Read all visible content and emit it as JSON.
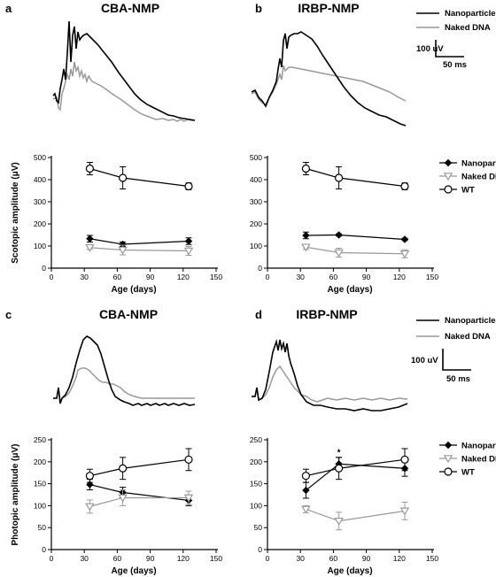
{
  "panels": [
    {
      "id": "a",
      "label": "a",
      "title": "CBA-NMP",
      "trace_legend": [
        "Nanoparticle",
        "Naked DNA"
      ],
      "scale_bar": null
    },
    {
      "id": "b",
      "label": "b",
      "title": "IRBP-NMP",
      "trace_legend": [
        "Nanoparticle",
        "Naked DNA"
      ],
      "scale_bar": {
        "amplitude": "100 uV",
        "time": "50 ms"
      }
    },
    {
      "id": "c",
      "label": "c",
      "title": "CBA-NMP",
      "trace_legend": [
        "Nanoparticle",
        "Naked DNA"
      ],
      "scale_bar": null
    },
    {
      "id": "d",
      "label": "d",
      "title": "IRBP-NMP",
      "trace_legend": [
        "Nanoparticle",
        "Naked DNA"
      ],
      "scale_bar": {
        "amplitude": "100 uV",
        "time": "50 ms"
      }
    }
  ],
  "colors": {
    "nanoparticle": "#000000",
    "naked_dna": "#999999",
    "wt": "#000000"
  },
  "chart_data": [
    {
      "id": "a-plot",
      "type": "line",
      "title": "",
      "xlabel": "Age (days)",
      "ylabel": "Scotopic amplitude (μV)",
      "xlim": [
        0,
        150
      ],
      "ylim": [
        0,
        500
      ],
      "xticks": [
        "0",
        "30",
        "60",
        "90",
        "120",
        "150"
      ],
      "yticks": [
        "0",
        "100",
        "200",
        "300",
        "400",
        "500"
      ],
      "legend": [],
      "series": [
        {
          "name": "Nanoparticle",
          "marker": "diamond",
          "x": [
            35,
            65,
            125
          ],
          "y": [
            133,
            108,
            122
          ],
          "err": [
            15,
            10,
            15
          ]
        },
        {
          "name": "Naked DNA",
          "marker": "triangle-down",
          "x": [
            35,
            65,
            125
          ],
          "y": [
            93,
            82,
            78
          ],
          "err": [
            8,
            22,
            20
          ]
        },
        {
          "name": "WT",
          "marker": "circle",
          "x": [
            35,
            65,
            125
          ],
          "y": [
            450,
            408,
            370
          ],
          "err": [
            28,
            50,
            15
          ]
        }
      ],
      "annotations": []
    },
    {
      "id": "b-plot",
      "type": "line",
      "title": "",
      "xlabel": "Age (days)",
      "ylabel": "",
      "xlim": [
        0,
        150
      ],
      "ylim": [
        0,
        500
      ],
      "xticks": [
        "0",
        "30",
        "60",
        "90",
        "120",
        "150"
      ],
      "yticks": [
        "0",
        "100",
        "200",
        "300",
        "400",
        "500"
      ],
      "legend": [
        "Nanoparticle",
        "Naked DNA",
        "WT"
      ],
      "series": [
        {
          "name": "Nanoparticle",
          "marker": "diamond",
          "x": [
            35,
            65,
            125
          ],
          "y": [
            148,
            150,
            130
          ],
          "err": [
            15,
            5,
            5
          ]
        },
        {
          "name": "Naked DNA",
          "marker": "triangle-down",
          "x": [
            35,
            65,
            125
          ],
          "y": [
            95,
            70,
            65
          ],
          "err": [
            10,
            20,
            18
          ]
        },
        {
          "name": "WT",
          "marker": "circle",
          "x": [
            35,
            65,
            125
          ],
          "y": [
            450,
            408,
            370
          ],
          "err": [
            28,
            50,
            15
          ]
        }
      ],
      "annotations": []
    },
    {
      "id": "c-plot",
      "type": "line",
      "title": "",
      "xlabel": "Age (days)",
      "ylabel": "Photopic amplitude (μV)",
      "xlim": [
        0,
        150
      ],
      "ylim": [
        0,
        250
      ],
      "xticks": [
        "0",
        "30",
        "60",
        "90",
        "120",
        "150"
      ],
      "yticks": [
        "0",
        "50",
        "100",
        "150",
        "200",
        "250"
      ],
      "legend": [],
      "series": [
        {
          "name": "Nanoparticle",
          "marker": "diamond",
          "x": [
            35,
            65,
            125
          ],
          "y": [
            148,
            130,
            112
          ],
          "err": [
            12,
            12,
            12
          ]
        },
        {
          "name": "Naked DNA",
          "marker": "triangle-down",
          "x": [
            35,
            65,
            125
          ],
          "y": [
            98,
            118,
            118
          ],
          "err": [
            15,
            18,
            15
          ]
        },
        {
          "name": "WT",
          "marker": "circle",
          "x": [
            35,
            65,
            125
          ],
          "y": [
            168,
            185,
            205
          ],
          "err": [
            15,
            25,
            25
          ]
        }
      ],
      "annotations": []
    },
    {
      "id": "d-plot",
      "type": "line",
      "title": "",
      "xlabel": "Age (days)",
      "ylabel": "",
      "xlim": [
        0,
        150
      ],
      "ylim": [
        0,
        250
      ],
      "xticks": [
        "0",
        "30",
        "60",
        "90",
        "120",
        "150"
      ],
      "yticks": [
        "0",
        "50",
        "100",
        "150",
        "200",
        "250"
      ],
      "legend": [
        "Nanoparticle",
        "Naked DNA",
        "WT"
      ],
      "series": [
        {
          "name": "Nanoparticle",
          "marker": "diamond",
          "x": [
            35,
            65,
            125
          ],
          "y": [
            135,
            195,
            185
          ],
          "err": [
            18,
            15,
            18
          ]
        },
        {
          "name": "Naked DNA",
          "marker": "triangle-down",
          "x": [
            35,
            65,
            125
          ],
          "y": [
            92,
            65,
            88
          ],
          "err": [
            8,
            20,
            20
          ]
        },
        {
          "name": "WT",
          "marker": "circle",
          "x": [
            35,
            65,
            125
          ],
          "y": [
            168,
            185,
            205
          ],
          "err": [
            15,
            25,
            25
          ]
        }
      ],
      "annotations": [
        {
          "text": "*",
          "x": 65,
          "y": 215
        }
      ]
    }
  ]
}
